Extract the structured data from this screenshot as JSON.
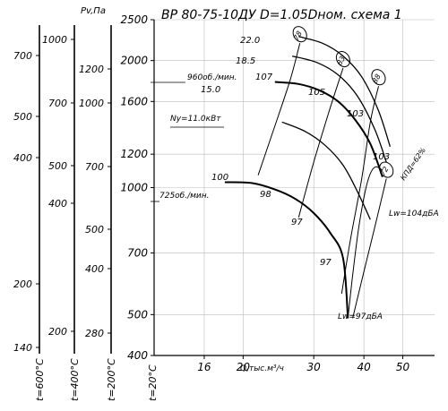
{
  "chart_data": {
    "type": "line",
    "title": "ВР 80-75-10ДУ D=1.05Dном. схема 1",
    "xlabel": "Q,тыс.м³/ч",
    "ylabel": "Pv,Па",
    "x_ticks": [
      16,
      20,
      30,
      40,
      50
    ],
    "y_ticks": [
      400,
      500,
      700,
      1000,
      1200,
      1600,
      2000,
      2500
    ],
    "side_scales": [
      {
        "label": "t=600°C",
        "ticks": [
          "700",
          "500",
          "400",
          "200",
          "140"
        ]
      },
      {
        "label": "t=400°C",
        "ticks": [
          "1000",
          "700",
          "500",
          "400",
          "200"
        ]
      },
      {
        "label": "t=200°C",
        "ticks": [
          "1200",
          "1000",
          "700",
          "500",
          "400",
          "280"
        ]
      },
      {
        "label": "t=20°C",
        "ticks": []
      }
    ],
    "series": [
      {
        "name": "960об./мин.",
        "points": [
          [
            24.0,
            1780
          ],
          [
            27.5,
            1760
          ],
          [
            31.0,
            1700
          ],
          [
            34.5,
            1600
          ],
          [
            38.0,
            1450
          ],
          [
            41.5,
            1270
          ],
          [
            44.5,
            1060
          ]
        ]
      },
      {
        "name": "725об./мин.",
        "points": [
          [
            18.0,
            1030
          ],
          [
            21.0,
            1025
          ],
          [
            24.0,
            990
          ],
          [
            27.0,
            940
          ],
          [
            30.0,
            870
          ],
          [
            33.0,
            780
          ],
          [
            35.5,
            680
          ],
          [
            36.5,
            490
          ]
        ]
      },
      {
        "name": "",
        "points": [
          [
            27.5,
            2280
          ],
          [
            31.5,
            2200
          ],
          [
            35.5,
            2050
          ],
          [
            39.5,
            1830
          ],
          [
            43.5,
            1520
          ],
          [
            46.5,
            1250
          ]
        ]
      },
      {
        "name": "",
        "points": [
          [
            26.5,
            2050
          ],
          [
            30.5,
            1980
          ],
          [
            34.5,
            1850
          ],
          [
            38.5,
            1650
          ],
          [
            42.5,
            1380
          ],
          [
            45.5,
            1150
          ]
        ]
      },
      {
        "name": "",
        "points": [
          [
            25.0,
            1430
          ],
          [
            28.5,
            1360
          ],
          [
            32.0,
            1260
          ],
          [
            35.5,
            1130
          ],
          [
            38.5,
            980
          ],
          [
            41.5,
            840
          ]
        ]
      }
    ],
    "efficiency_curves": [
      {
        "label": "78",
        "points": [
          [
            21.8,
            1070
          ],
          [
            24.0,
            1400
          ],
          [
            26.2,
            1800
          ],
          [
            27.7,
            2200
          ]
        ]
      },
      {
        "label": "83",
        "points": [
          [
            27.5,
            850
          ],
          [
            30.0,
            1150
          ],
          [
            33.0,
            1550
          ],
          [
            35.5,
            1920
          ]
        ]
      },
      {
        "label": "88",
        "points": [
          [
            35.2,
            560
          ],
          [
            37.0,
            750
          ],
          [
            39.5,
            1050
          ],
          [
            41.5,
            1430
          ],
          [
            43.5,
            1740
          ]
        ]
      },
      {
        "label": "72",
        "points": [
          [
            37.5,
            490
          ],
          [
            39.8,
            620
          ],
          [
            42.5,
            800
          ],
          [
            45.5,
            1050
          ]
        ]
      }
    ],
    "boundary_curves": [
      {
        "points": [
          [
            36.5,
            490
          ],
          [
            37.5,
            620
          ],
          [
            38.8,
            800
          ],
          [
            40.3,
            980
          ],
          [
            41.5,
            1080
          ],
          [
            42.8,
            1120
          ],
          [
            44.5,
            1100
          ]
        ]
      }
    ],
    "power_labels": [
      "22.0",
      "18.5",
      "15.0",
      "Ny=11.0кВт"
    ],
    "point_labels": [
      "107",
      "105",
      "103",
      "103",
      "100",
      "98",
      "97",
      "97"
    ],
    "efficiency_legend": "КПД=62%",
    "noise_labels": [
      "Lw=104дБА",
      "Lw=97дБА"
    ],
    "scale": "log-log"
  }
}
